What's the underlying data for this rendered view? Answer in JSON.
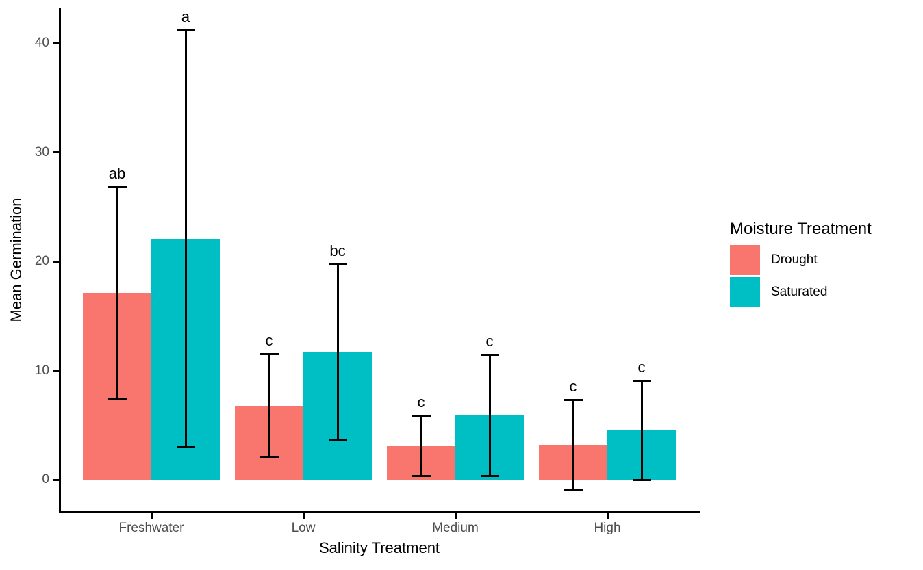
{
  "chart_data": {
    "type": "bar",
    "title": "",
    "xlabel": "Salinity Treatment",
    "ylabel": "Mean Germination",
    "categories": [
      "Freshwater",
      "Low",
      "Medium",
      "High"
    ],
    "series": [
      {
        "name": "Drought",
        "color": "#F8766D",
        "values": [
          17.1,
          6.8,
          3.1,
          3.2
        ],
        "error_low": [
          7.4,
          2.1,
          0.4,
          -0.9
        ],
        "error_high": [
          26.8,
          11.5,
          5.8,
          7.3
        ],
        "letters": [
          "ab",
          "c",
          "c",
          "c"
        ]
      },
      {
        "name": "Saturated",
        "color": "#00BFC4",
        "values": [
          22.1,
          11.7,
          5.9,
          4.5
        ],
        "error_low": [
          3.0,
          3.7,
          0.4,
          0.0
        ],
        "error_high": [
          41.1,
          19.7,
          11.4,
          9.0
        ],
        "letters": [
          "a",
          "bc",
          "c",
          "c"
        ]
      }
    ],
    "y_ticks": [
      "0",
      "10",
      "20",
      "30",
      "40"
    ],
    "ylim": [
      -2.9,
      43.2
    ],
    "grid": false,
    "legend": {
      "title": "Moisture Treatment",
      "position": "right"
    },
    "tick_label_color": "#4d4d4d",
    "axis_color": "#000000"
  }
}
